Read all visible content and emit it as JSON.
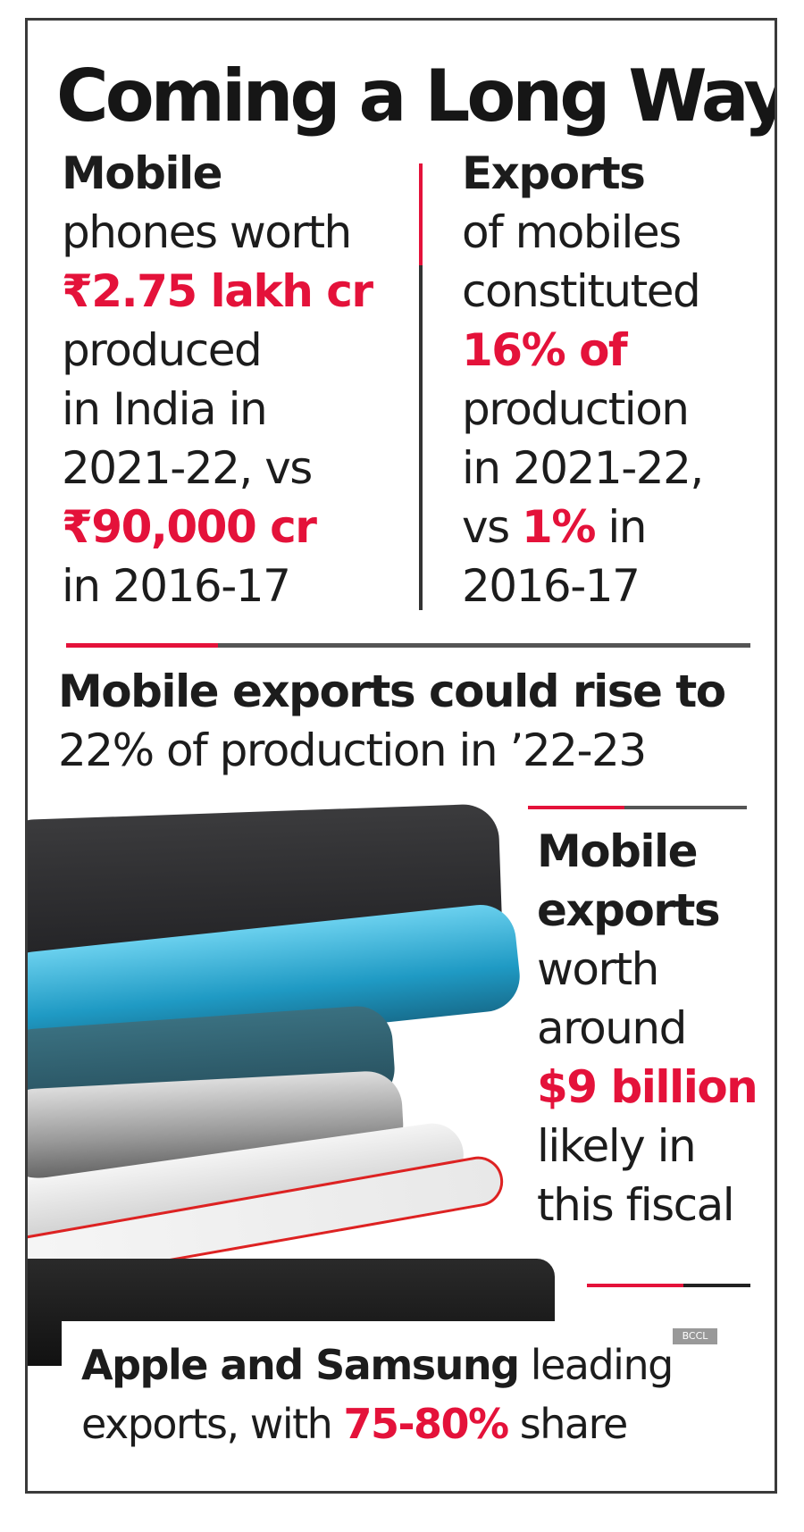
{
  "title": "Coming a Long Way",
  "left_column": {
    "lines": [
      "Mobile",
      "phones worth",
      "₹2.75 lakh cr",
      "produced",
      "in India in",
      "2021-22, vs",
      "₹90,000 cr",
      "in 2016-17"
    ]
  },
  "right_column": {
    "lines": [
      "Exports",
      "of mobiles",
      "constituted",
      "16% of",
      "production",
      "in 2021-22,"
    ],
    "line7_prefix": "vs ",
    "line7_highlight": "1%",
    "line7_suffix": " in",
    "line8": "2016-17"
  },
  "middle": {
    "line1": "Mobile exports could rise to",
    "line2": "22% of production in ’22-23"
  },
  "side_note": {
    "lines": [
      "Mobile",
      "exports",
      "worth",
      "around",
      "$9 billion",
      "likely in",
      "this fiscal"
    ]
  },
  "bottom": {
    "bold": "Apple and Samsung",
    "rest1": " leading",
    "line2_prefix": "exports, with ",
    "line2_highlight": "75-80%",
    "line2_suffix": " share"
  },
  "watermark": "BCCL",
  "colors": {
    "accent_red": "#e4123a",
    "text": "#1c1c1c",
    "rule": "#555555"
  }
}
